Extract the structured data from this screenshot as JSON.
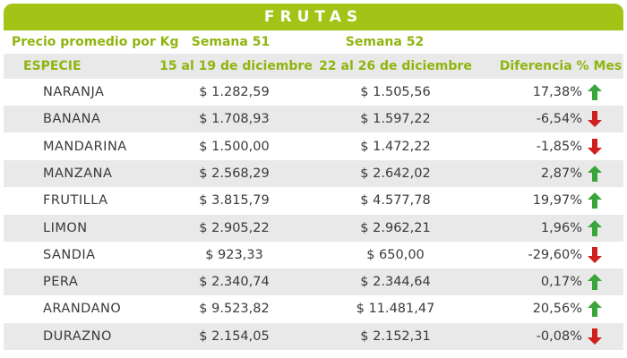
{
  "title": "FRUTAS",
  "header": {
    "price_label": "Precio promedio por Kg",
    "week51_label": "Semana 51",
    "week52_label": "Semana 52",
    "species_label": "ESPECIE",
    "week51_range": "15 al 19 de diciembre",
    "week52_range": "22 al 26 de diciembre",
    "diff_label": "Diferencia % Mes"
  },
  "colors": {
    "accent": "#a3c417",
    "header_text": "#8fb50f",
    "up_arrow": "#3aa53a",
    "down_arrow": "#d11f1f",
    "row_shade": "#e9e9e9"
  },
  "rows": [
    {
      "name": "NARANJA",
      "w51": "$ 1.282,59",
      "w52": "$ 1.505,56",
      "diff": "17,38%",
      "trend": "up"
    },
    {
      "name": "BANANA",
      "w51": "$ 1.708,93",
      "w52": "$ 1.597,22",
      "diff": "-6,54%",
      "trend": "down"
    },
    {
      "name": "MANDARINA",
      "w51": "$ 1.500,00",
      "w52": "$ 1.472,22",
      "diff": "-1,85%",
      "trend": "down"
    },
    {
      "name": "MANZANA",
      "w51": "$ 2.568,29",
      "w52": "$ 2.642,02",
      "diff": "2,87%",
      "trend": "up"
    },
    {
      "name": "FRUTILLA",
      "w51": "$ 3.815,79",
      "w52": "$ 4.577,78",
      "diff": "19,97%",
      "trend": "up"
    },
    {
      "name": "LIMON",
      "w51": "$ 2.905,22",
      "w52": "$ 2.962,21",
      "diff": "1,96%",
      "trend": "up"
    },
    {
      "name": "SANDIA",
      "w51": "$ 923,33",
      "w52": "$ 650,00",
      "diff": "-29,60%",
      "trend": "down"
    },
    {
      "name": "PERA",
      "w51": "$ 2.340,74",
      "w52": "$ 2.344,64",
      "diff": "0,17%",
      "trend": "up"
    },
    {
      "name": "ARANDANO",
      "w51": "$ 9.523,82",
      "w52": "$ 11.481,47",
      "diff": "20,56%",
      "trend": "up"
    },
    {
      "name": "DURAZNO",
      "w51": "$ 2.154,05",
      "w52": "$ 2.152,31",
      "diff": "-0,08%",
      "trend": "down"
    }
  ]
}
